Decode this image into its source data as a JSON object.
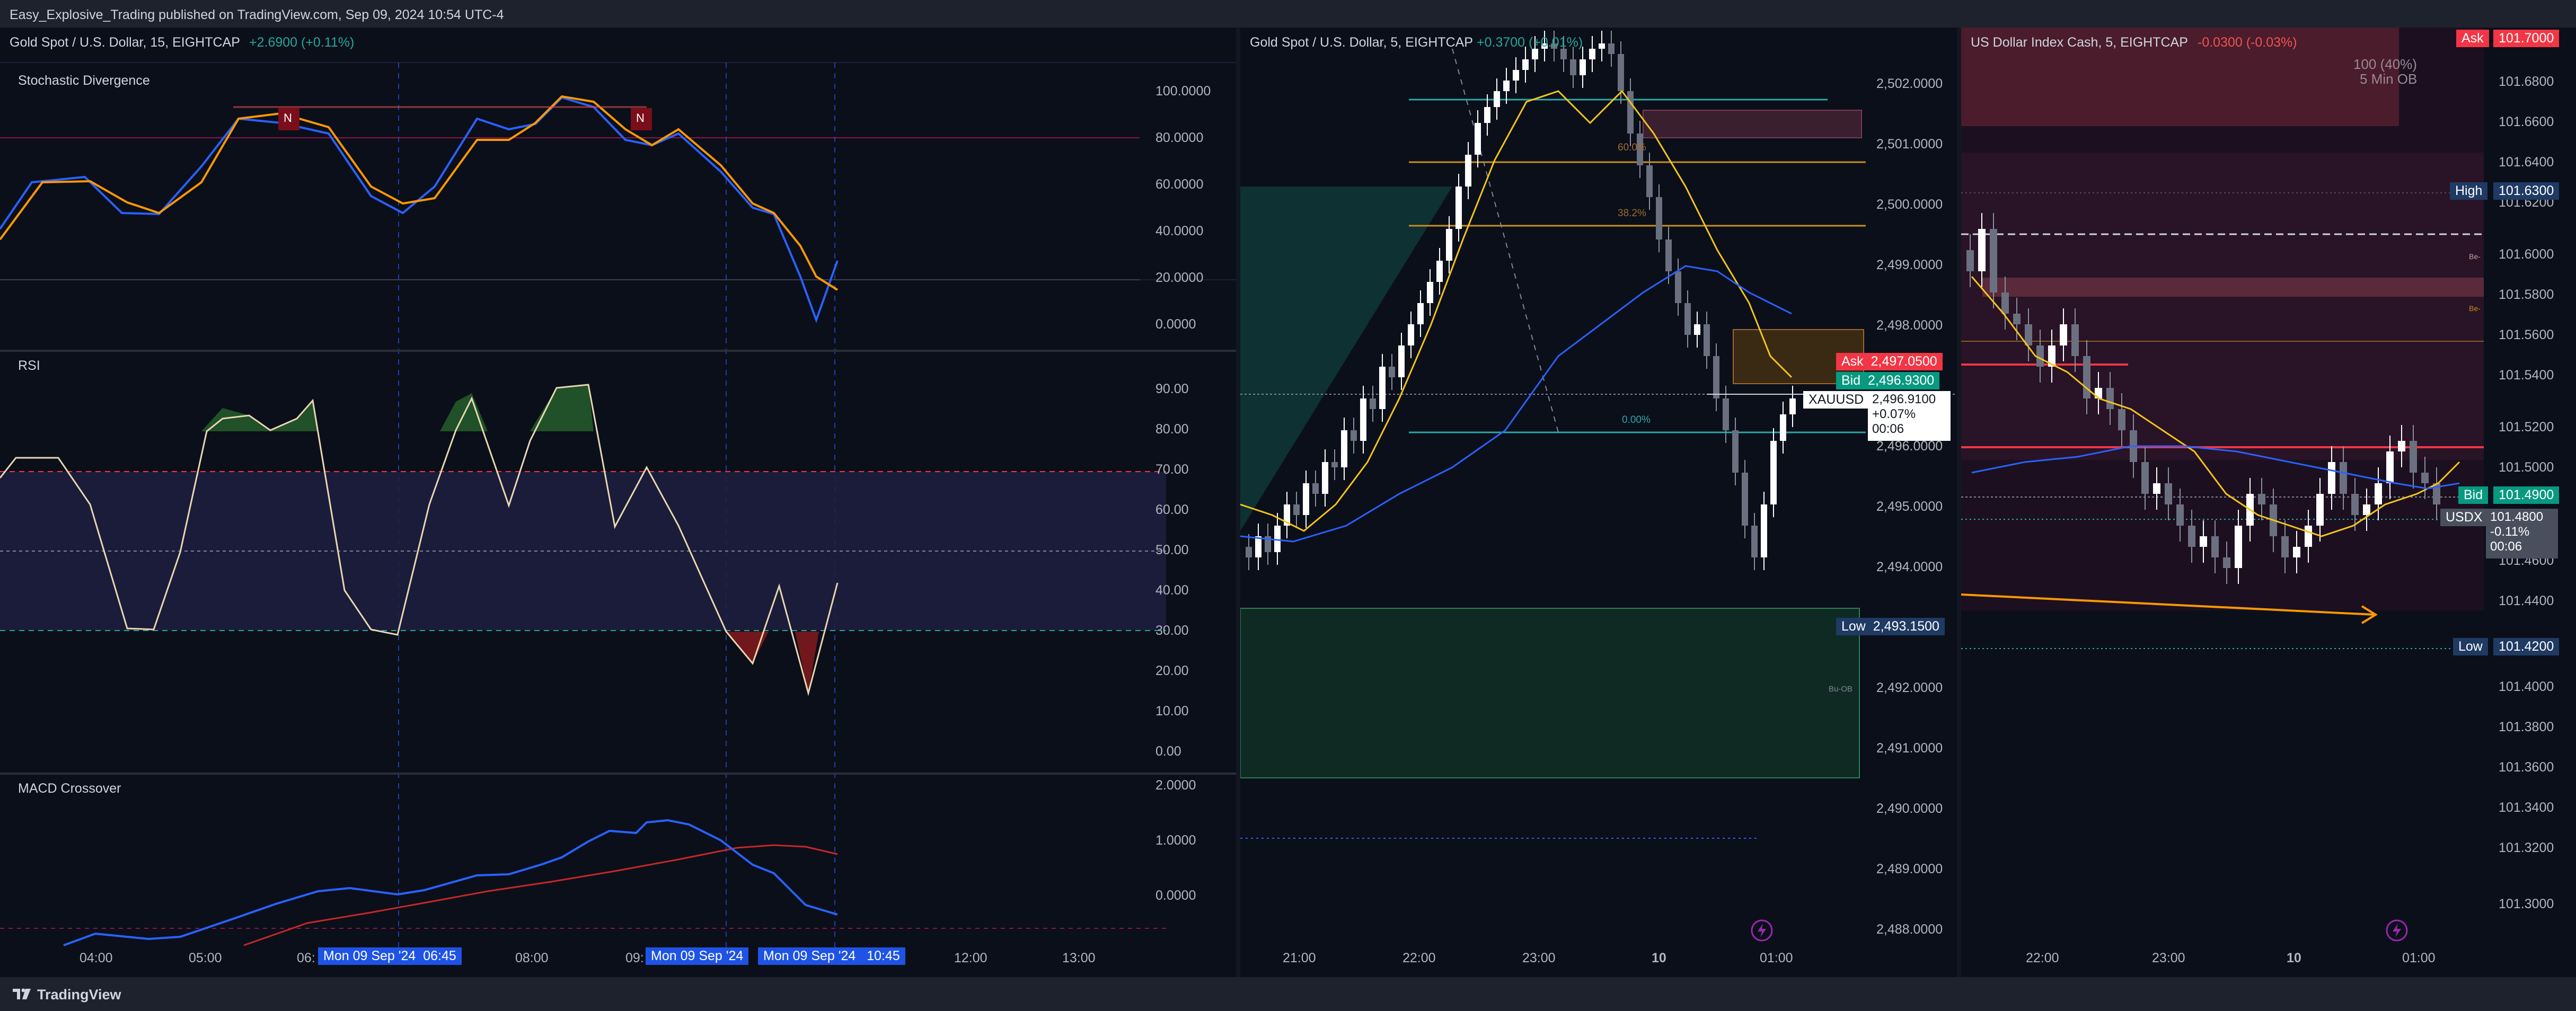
{
  "publish_line": "Easy_Explosive_Trading published on TradingView.com, Sep 09, 2024 10:54 UTC-4",
  "brand": "TradingView",
  "colors": {
    "up": "#26a69a",
    "down": "#ef5350",
    "blue": "#2962ff",
    "ask": "#f23645",
    "bid": "#089981"
  },
  "left": {
    "header": {
      "symbol": "Gold Spot / U.S. Dollar, 15, EIGHTCAP",
      "change": "+2.6900 (+0.11%)"
    },
    "stoch": {
      "title": "Stochastic Divergence",
      "ticks": [
        "100.0000",
        "80.0000",
        "60.0000",
        "40.0000",
        "20.0000",
        "0.0000"
      ],
      "marker": "N"
    },
    "rsi": {
      "title": "RSI",
      "ticks": [
        "90.00",
        "80.00",
        "70.00",
        "60.00",
        "50.00",
        "40.00",
        "30.00",
        "20.00",
        "10.00",
        "0.00"
      ]
    },
    "macd": {
      "title": "MACD Crossover",
      "ticks": [
        "2.0000",
        "1.0000",
        "0.0000"
      ]
    },
    "time_ticks": [
      "04:00",
      "05:00",
      "06:",
      "08:00",
      "09:",
      "12:00",
      "13:00"
    ],
    "time_labels": [
      "Mon 09 Sep '24",
      "06:45",
      "Mon 09 Sep '24",
      "Mon 09 Sep '24",
      "10:45"
    ]
  },
  "mid": {
    "header": {
      "symbol": "Gold Spot / U.S. Dollar, 5, EIGHTCAP",
      "change": "+0.3700 (+0.01%)"
    },
    "price_ticks": [
      "2,502.0000",
      "2,501.0000",
      "2,500.0000",
      "2,499.0000",
      "2,498.0000",
      "2,497.0000",
      "2,496.0000",
      "2,495.0000",
      "2,494.0000",
      "2,493.0000",
      "2,492.0000",
      "2,491.0000",
      "2,490.0000",
      "2,489.0000",
      "2,488.0000"
    ],
    "ask": {
      "label": "Ask",
      "value": "2,497.0500"
    },
    "bid": {
      "label": "Bid",
      "value": "2,496.9300"
    },
    "price_box": {
      "symbol": "XAUUSD",
      "price": "2,496.9100",
      "change": "+0.07%",
      "countdown": "00:06"
    },
    "low": {
      "label": "Low",
      "value": "2,493.1500"
    },
    "fib_labels": [
      "60.0%",
      "38.2%",
      "0.00%"
    ],
    "ob_label": "Bu-OB",
    "time_ticks": [
      "21:00",
      "22:00",
      "23:00",
      "10",
      "01:00"
    ]
  },
  "right": {
    "header": {
      "symbol": "US Dollar Index Cash, 5, EIGHTCAP",
      "change": "-0.0300 (-0.03%)"
    },
    "price_ticks": [
      "101.6800",
      "101.6600",
      "101.6400",
      "101.6200",
      "101.6000",
      "101.5800",
      "101.5600",
      "101.5400",
      "101.5200",
      "101.5000",
      "101.4800",
      "101.4600",
      "101.4400",
      "101.4200",
      "101.4000",
      "101.3800",
      "101.3600",
      "101.3400",
      "101.3200",
      "101.3000"
    ],
    "ask": {
      "label": "Ask",
      "value": "101.7000"
    },
    "high": {
      "label": "High",
      "value": "101.6300"
    },
    "bid": {
      "label": "Bid",
      "value": "101.4900"
    },
    "price_box": {
      "symbol": "USDX",
      "price": "101.4800",
      "change": "-0.11%",
      "countdown": "00:06"
    },
    "low": {
      "label": "Low",
      "value": "101.4200"
    },
    "ob_text": {
      "line1": "100 (40%)",
      "line2": "5 Min OB"
    },
    "be_labels": [
      "Be-",
      "Be-"
    ],
    "time_ticks": [
      "22:00",
      "23:00",
      "10",
      "01:00"
    ]
  }
}
